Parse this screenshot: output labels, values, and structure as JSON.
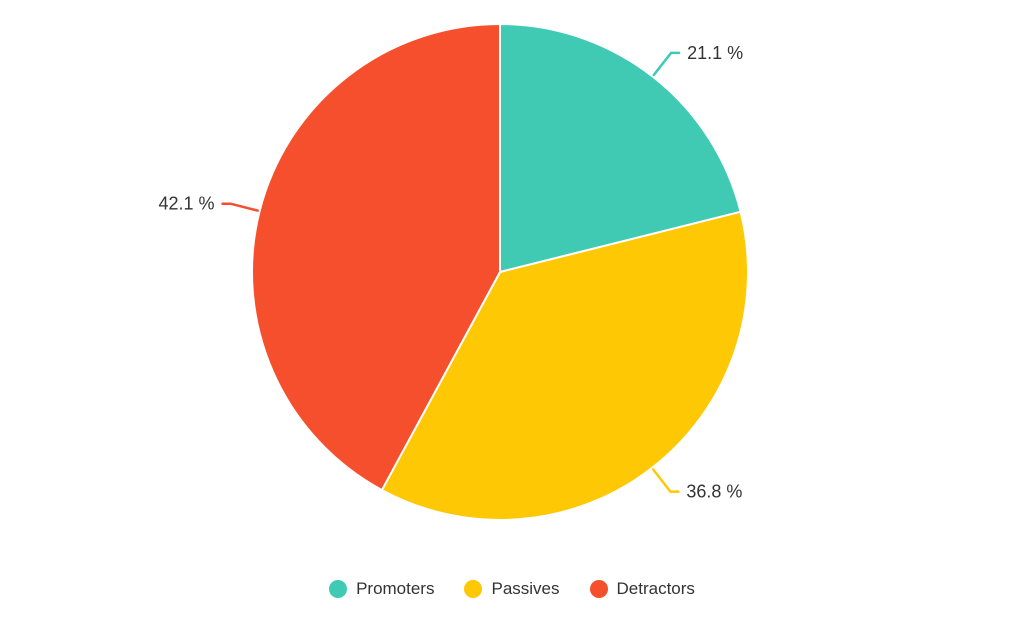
{
  "chart_data": {
    "type": "pie",
    "title": "",
    "start_angle": "12 o'clock",
    "direction": "clockwise",
    "slices": [
      {
        "name": "Promoters",
        "value": 21.1,
        "label": "21.1 %",
        "color": "#40CAB4"
      },
      {
        "name": "Passives",
        "value": 36.8,
        "label": "36.8 %",
        "color": "#FFC805"
      },
      {
        "name": "Detractors",
        "value": 42.1,
        "label": "42.1 %",
        "color": "#F64F2D"
      }
    ],
    "legend": {
      "placement": "bottom-center",
      "items": [
        {
          "label": "Promoters",
          "color": "#40CAB4"
        },
        {
          "label": "Passives",
          "color": "#FFC805"
        },
        {
          "label": "Detractors",
          "color": "#F64F2D"
        }
      ]
    }
  }
}
